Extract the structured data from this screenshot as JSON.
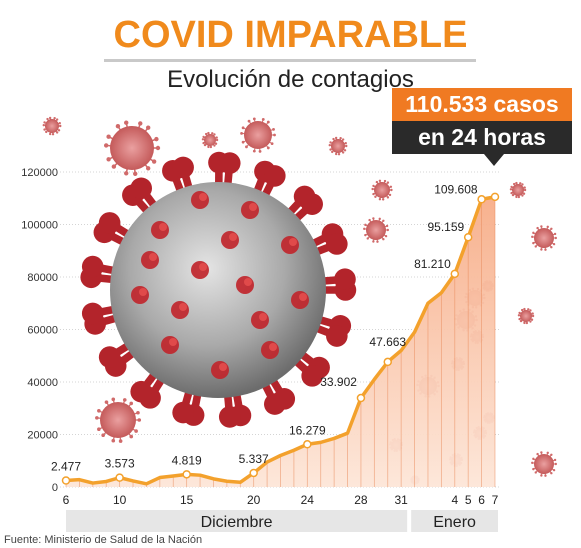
{
  "header": {
    "title": "COVID IMPARABLE",
    "subtitle": "Evolución de contagios"
  },
  "callout": {
    "line1": "110.533 casos",
    "line2": "en 24 horas"
  },
  "source": "Fuente: Ministerio de Salud de la Nación",
  "colors": {
    "accent": "#f08a1c",
    "line": "#f3a12c",
    "area_top": "#f7b99a",
    "area_bottom": "#fde8dc",
    "month_band": "#e6e6e6",
    "virus_red": "#c0262c",
    "virus_grey": "#9a9a9a"
  },
  "chart_data": {
    "type": "area",
    "ylim": [
      0,
      120000
    ],
    "yticks": [
      0,
      20000,
      40000,
      60000,
      80000,
      100000,
      120000
    ],
    "xtick_labels": [
      "6",
      "10",
      "15",
      "20",
      "24",
      "28",
      "31",
      "4",
      "5",
      "6",
      "7"
    ],
    "month_labels": [
      "Diciembre",
      "Enero"
    ],
    "series": [
      {
        "x": [
          "2021-12-06",
          "2021-12-07",
          "2021-12-08",
          "2021-12-09",
          "2021-12-10",
          "2021-12-11",
          "2021-12-12",
          "2021-12-13",
          "2021-12-14",
          "2021-12-15",
          "2021-12-16",
          "2021-12-17",
          "2021-12-18",
          "2021-12-19",
          "2021-12-20",
          "2021-12-21",
          "2021-12-22",
          "2021-12-23",
          "2021-12-24",
          "2021-12-25",
          "2021-12-26",
          "2021-12-27",
          "2021-12-28",
          "2021-12-29",
          "2021-12-30",
          "2021-12-31",
          "2022-01-01",
          "2022-01-02",
          "2022-01-03",
          "2022-01-04",
          "2022-01-05",
          "2022-01-06",
          "2022-01-07"
        ],
        "values": [
          2477,
          2800,
          1500,
          2100,
          3573,
          2300,
          1200,
          3600,
          4200,
          4819,
          4500,
          3100,
          2200,
          1800,
          5337,
          9500,
          12000,
          14000,
          16279,
          17000,
          18500,
          20500,
          33902,
          41000,
          47663,
          52000,
          59000,
          70000,
          74000,
          81210,
          95159,
          109608,
          110533
        ]
      }
    ],
    "data_labels": [
      {
        "x": "2021-12-06",
        "text": "2.477"
      },
      {
        "x": "2021-12-10",
        "text": "3.573"
      },
      {
        "x": "2021-12-15",
        "text": "4.819"
      },
      {
        "x": "2021-12-20",
        "text": "5.337"
      },
      {
        "x": "2021-12-24",
        "text": "16.279"
      },
      {
        "x": "2021-12-28",
        "text": "33.902"
      },
      {
        "x": "2021-12-30",
        "text": "47.663"
      },
      {
        "x": "2022-01-04",
        "text": "81.210"
      },
      {
        "x": "2022-01-05",
        "text": "95.159"
      },
      {
        "x": "2022-01-06",
        "text": "109.608"
      }
    ],
    "grid": true
  }
}
